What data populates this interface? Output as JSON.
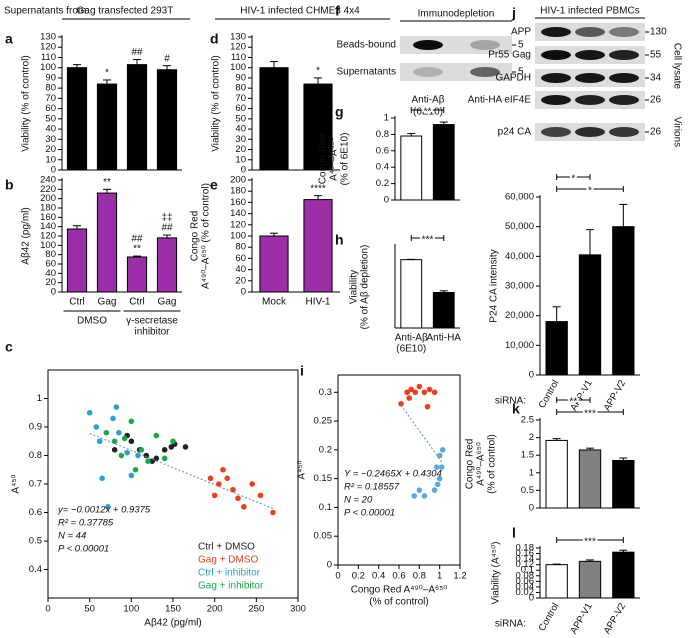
{
  "header": {
    "source_label": "Supernatants from:",
    "groups": [
      "Gag transfected 293T",
      "HIV-1 infected CHME3 4x4"
    ]
  },
  "blots": [
    {
      "panel": "f",
      "title": "Immunodepletion",
      "rows": [
        {
          "label": "Beads-bound",
          "marker": "5"
        },
        {
          "label": "Supernatants",
          "marker": "5"
        }
      ],
      "lanes": [
        [
          "Anti-Aβ",
          "(6E10)"
        ],
        [
          "Anti-HA"
        ]
      ]
    },
    {
      "panel": "j",
      "title": "HIV-1 infected PBMCs",
      "rows": [
        {
          "label": "APP",
          "marker": "130"
        },
        {
          "label": "Pr55 Gag",
          "marker": "55"
        },
        {
          "label": "GAPDH",
          "marker": "34"
        },
        {
          "label": "eIF4E",
          "marker": "26"
        },
        {
          "label": "p24 CA",
          "marker": "26"
        }
      ],
      "sections": [
        "Cell lysate",
        "Virions"
      ]
    }
  ],
  "chart_data": [
    {
      "panel": "a",
      "type": "bar",
      "ylabel": [
        "Viability (% of control)"
      ],
      "categories": [
        null,
        null,
        null,
        null
      ],
      "values": [
        100,
        84,
        103,
        98
      ],
      "errors": [
        3,
        4,
        5,
        4
      ],
      "significance": [
        null,
        [
          "*"
        ],
        [
          "##"
        ],
        [
          "#"
        ]
      ],
      "color": "#000000",
      "ylim": [
        0,
        130
      ],
      "yticks": [
        0,
        10,
        20,
        30,
        40,
        50,
        60,
        70,
        80,
        90,
        100,
        110,
        120,
        130
      ]
    },
    {
      "panel": "b",
      "type": "bar",
      "ylabel": [
        "Aβ42 (pg/ml)"
      ],
      "categories": [
        "Ctrl",
        "Gag",
        "Ctrl",
        "Gag"
      ],
      "values": [
        135,
        212,
        75,
        116
      ],
      "errors": [
        7,
        8,
        2,
        6
      ],
      "significance": [
        null,
        [
          "**"
        ],
        [
          "##",
          "**"
        ],
        [
          "‡‡",
          "##"
        ]
      ],
      "color": "#9a2fa8",
      "ylim": [
        0,
        240
      ],
      "yticks": [
        0,
        20,
        40,
        60,
        80,
        100,
        120,
        140,
        160,
        180,
        200,
        220,
        240
      ],
      "groups": [
        {
          "label": [
            "DMSO"
          ],
          "categories": [
            0,
            1
          ]
        },
        {
          "label": [
            "γ-secretase",
            "inhibitor"
          ],
          "categories": [
            2,
            3
          ]
        }
      ]
    },
    {
      "panel": "c",
      "type": "scatter",
      "xlabel": [
        "Aβ42 (pg/ml)"
      ],
      "ylabel": [
        "A⁴⁵⁰"
      ],
      "xlim": [
        0,
        300
      ],
      "xticks": [
        0,
        50,
        100,
        150,
        200,
        250,
        300
      ],
      "ylim": [
        0.3,
        1.1
      ],
      "yticks": [
        0.4,
        0.5,
        0.6,
        0.7,
        0.8,
        0.9,
        1
      ],
      "legend": "lower right",
      "series": [
        {
          "name": "Ctrl + DMSO",
          "color": "#222222",
          "x": [
            80,
            95,
            100,
            110,
            118,
            125,
            130,
            140,
            148,
            152,
            165
          ],
          "values": [
            0.82,
            0.87,
            0.85,
            0.82,
            0.8,
            0.78,
            0.79,
            0.82,
            0.83,
            0.84,
            0.83
          ]
        },
        {
          "name": "Gag + DMSO",
          "color": "#e8401c",
          "x": [
            195,
            200,
            205,
            210,
            215,
            222,
            228,
            235,
            245,
            255,
            270
          ],
          "values": [
            0.72,
            0.66,
            0.7,
            0.75,
            0.72,
            0.68,
            0.65,
            0.62,
            0.7,
            0.66,
            0.6
          ]
        },
        {
          "name": "Ctrl + inhibitor",
          "color": "#2a9fd6",
          "x": [
            50,
            58,
            62,
            65,
            72,
            78,
            82,
            85,
            95,
            100,
            108
          ],
          "values": [
            0.95,
            0.9,
            0.85,
            0.72,
            0.62,
            0.93,
            0.97,
            0.88,
            0.81,
            0.73,
            0.8
          ]
        },
        {
          "name": "Gag + inhibitor",
          "color": "#1aa84a",
          "x": [
            70,
            80,
            88,
            92,
            100,
            105,
            112,
            120,
            130,
            140,
            150
          ],
          "values": [
            0.88,
            0.85,
            0.8,
            0.86,
            0.92,
            0.75,
            0.82,
            0.78,
            0.87,
            0.79,
            0.85
          ]
        }
      ],
      "trendline": {
        "slope": -0.0012,
        "intercept": 0.9375
      },
      "annotation": [
        "y= −0.0012x + 0.9375",
        "R² = 0.37785",
        "N = 44",
        "P < 0.00001"
      ]
    },
    {
      "panel": "d",
      "type": "bar",
      "ylabel": [
        "Viability (% of control)"
      ],
      "categories": [
        null,
        null
      ],
      "values": [
        100,
        84
      ],
      "errors": [
        6,
        6
      ],
      "significance": [
        null,
        [
          "*"
        ]
      ],
      "color": "#000000",
      "ylim": [
        0,
        130
      ],
      "yticks": [
        0,
        10,
        20,
        30,
        40,
        50,
        60,
        70,
        80,
        90,
        100,
        110,
        120,
        130
      ]
    },
    {
      "panel": "e",
      "type": "bar",
      "ylabel": [
        "Congo Red",
        "A⁴⁹⁰–A⁶⁵⁰ (% of control)"
      ],
      "categories": [
        "Mock",
        "HIV-1"
      ],
      "values": [
        100,
        165
      ],
      "errors": [
        5,
        7
      ],
      "significance": [
        null,
        [
          "****"
        ]
      ],
      "color": "#9a2fa8",
      "ylim": [
        0,
        200
      ],
      "yticks": [
        0,
        20,
        40,
        60,
        80,
        100,
        120,
        140,
        160,
        180,
        200
      ]
    },
    {
      "panel": "g",
      "type": "bar",
      "ylabel": [
        "Congo Red",
        "A⁴⁹⁰–A⁶⁵⁰",
        "(% of 6E10)"
      ],
      "categories": [
        null,
        null
      ],
      "values": [
        0.78,
        0.92
      ],
      "errors": [
        0.03,
        0.03
      ],
      "colors": [
        "#ffffff",
        "#000000"
      ],
      "ylim": [
        0,
        1
      ],
      "yticks": [
        0,
        0.2,
        0.4,
        0.6,
        0.8,
        1
      ],
      "brackets": [
        {
          "categories": [
            0,
            1
          ],
          "label": "**"
        }
      ]
    },
    {
      "panel": "h",
      "type": "bar",
      "ylabel": [
        "Viability",
        "(% of Aβ depletion)"
      ],
      "categories": [
        [
          "Anti-Aβ",
          "(6E10)"
        ],
        [
          "Anti-HA"
        ]
      ],
      "values": [
        100,
        52
      ],
      "errors": [
        0.5,
        2.5
      ],
      "colors": [
        "#ffffff",
        "#000000"
      ],
      "ylim": [
        0,
        120
      ],
      "brackets": [
        {
          "categories": [
            0,
            1
          ],
          "label": "***"
        }
      ]
    },
    {
      "panel": "i",
      "type": "scatter",
      "xlabel": [
        "Congo Red A⁴⁹⁰–A⁶⁵⁰",
        "(% of control)"
      ],
      "ylabel": [
        "A⁴⁵⁰"
      ],
      "xlim": [
        0,
        1.2
      ],
      "xticks": [
        0,
        0.2,
        0.4,
        0.6,
        0.8,
        1,
        1.2
      ],
      "ylim": [
        0,
        0.33
      ],
      "yticks": [
        0,
        0.05,
        0.1,
        0.15,
        0.2,
        0.25,
        0.3
      ],
      "series": [
        {
          "color": "#e8401c",
          "x": [
            0.62,
            0.68,
            0.72,
            0.76,
            0.8,
            0.85,
            0.9,
            0.95,
            0.7,
            0.88
          ],
          "values": [
            0.28,
            0.3,
            0.305,
            0.3,
            0.31,
            0.3,
            0.305,
            0.3,
            0.29,
            0.275
          ]
        },
        {
          "color": "#5aa8de",
          "x": [
            0.75,
            0.8,
            0.85,
            0.97,
            1,
            1.02,
            1,
            0.98,
            1.03,
            0.95
          ],
          "values": [
            0.12,
            0.13,
            0.12,
            0.17,
            0.19,
            0.17,
            0.15,
            0.14,
            0.2,
            0.13
          ]
        }
      ],
      "trendline": {
        "slope": -0.2465,
        "intercept": 0.4304
      },
      "annotation": [
        "Y = −0.2465X + 0.4304",
        "R² = 0.18557",
        "N = 20",
        "P < 0.00001"
      ]
    },
    {
      "type": "bar",
      "ylabel": [
        "P24 CA intensity"
      ],
      "categories": [
        "Control",
        "APP-V1",
        "APP-V2"
      ],
      "category_title": "siRNA:",
      "rotate_labels": true,
      "values": [
        18000,
        40500,
        50000
      ],
      "errors": [
        5000,
        8500,
        7500
      ],
      "color": "#000000",
      "ylim": [
        0,
        60000
      ],
      "yticks": [
        0,
        {
          "value": 10000,
          "label": "10,000"
        },
        {
          "value": 20000,
          "label": "20,000"
        },
        {
          "value": 30000,
          "label": "30,000"
        },
        {
          "value": 40000,
          "label": "40,000"
        },
        {
          "value": 50000,
          "label": "50,000"
        },
        {
          "value": 60000,
          "label": "60,000"
        }
      ],
      "brackets": [
        {
          "categories": [
            0,
            2
          ],
          "label": "*"
        },
        {
          "categories": [
            0,
            1
          ],
          "label": "*"
        }
      ]
    },
    {
      "panel": "k",
      "type": "bar",
      "ylabel": [
        "Congo Red",
        "A⁴⁹⁰–A⁶⁵⁰",
        "(% of control)"
      ],
      "categories": [
        null,
        null,
        null
      ],
      "values": [
        1.92,
        1.65,
        1.35
      ],
      "errors": [
        0.05,
        0.05,
        0.07
      ],
      "colors": [
        "#ffffff",
        "#808080",
        "#000000"
      ],
      "ylim": [
        0,
        2.5
      ],
      "yticks": [
        0,
        0.5,
        1,
        1.5,
        2,
        2.5
      ],
      "brackets": [
        {
          "categories": [
            0,
            2
          ],
          "label": "***"
        },
        {
          "categories": [
            0,
            1
          ],
          "label": "**"
        }
      ]
    },
    {
      "panel": "l",
      "type": "bar",
      "ylabel": [
        "Viability (A⁴⁵⁰)"
      ],
      "categories": [
        "Control",
        "APP-V1",
        "APP-V2"
      ],
      "category_title": "siRNA:",
      "rotate_labels": true,
      "values": [
        0.12,
        0.132,
        0.165
      ],
      "errors": [
        0.002,
        0.005,
        0.007
      ],
      "colors": [
        "#ffffff",
        "#808080",
        "#000000"
      ],
      "ylim": [
        0,
        0.18
      ],
      "yticks": [
        0,
        0.02,
        0.04,
        0.06,
        0.08,
        0.1,
        0.12,
        0.14,
        0.16,
        0.18
      ],
      "brackets": [
        {
          "categories": [
            0,
            2
          ],
          "label": "***"
        }
      ]
    }
  ]
}
